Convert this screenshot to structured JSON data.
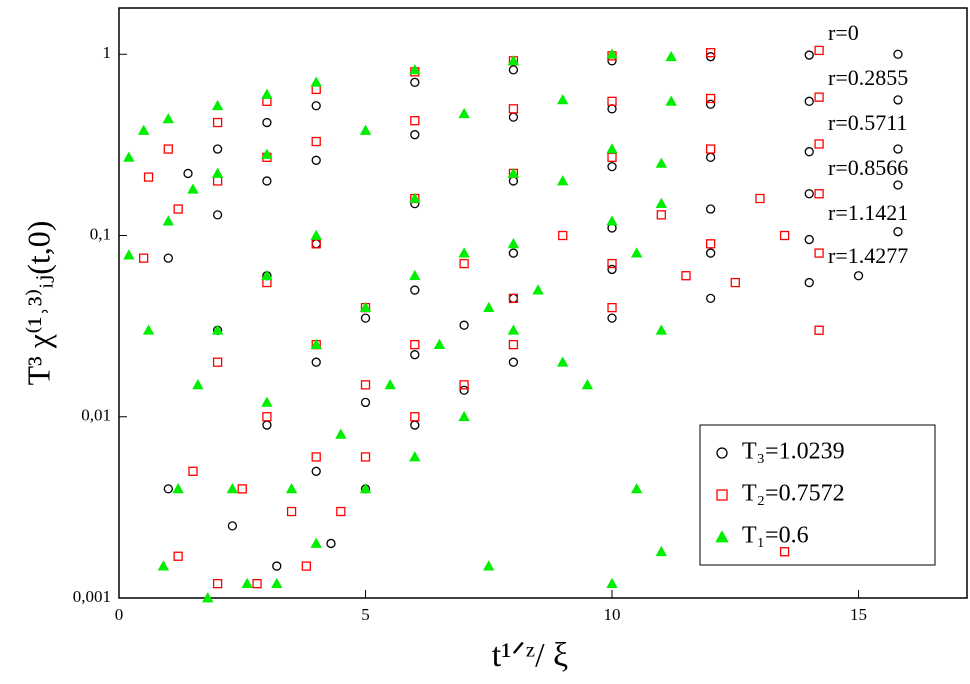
{
  "chart_data": {
    "type": "scatter",
    "xlabel": "t¹ᐟᶻ/ ξ",
    "ylabel": "T³ χ⁽¹˒³⁾ᵢⱼ(t,0)",
    "log_y": true,
    "xlim": [
      0,
      17.2
    ],
    "ylim": [
      0.001,
      1.8
    ],
    "xticks": [
      0,
      5,
      10,
      15
    ],
    "yticks": [
      {
        "value": 0.001,
        "label": "0,001"
      },
      {
        "value": 0.01,
        "label": "0,01"
      },
      {
        "value": 0.1,
        "label": "0,1"
      },
      1
    ],
    "legend": "lower right",
    "annotations": [
      "r=0",
      "r=0.2855",
      "r=0.5711",
      "r=0.8566",
      "r=1.1421",
      "r=1.4277"
    ],
    "series": [
      {
        "name": "T₃=1.0239",
        "color": "#000000",
        "marker": "circle",
        "x": [
          1.4,
          2,
          3,
          4,
          6,
          8,
          10,
          12,
          14,
          15.8,
          1.0,
          2,
          3,
          4,
          6,
          8,
          10,
          12,
          14,
          15.8,
          1.0,
          2,
          3,
          4,
          6,
          8,
          10,
          12,
          14,
          15.8,
          2.3,
          3,
          4,
          5,
          6,
          8,
          10,
          12,
          14,
          15.8,
          3.2,
          4,
          5,
          6,
          7,
          8,
          10,
          12,
          14,
          15.8,
          4.3,
          5,
          6,
          7,
          8,
          10,
          12,
          14,
          15
        ],
        "values": [
          0.22,
          0.3,
          0.42,
          0.52,
          0.7,
          0.82,
          0.92,
          0.97,
          0.99,
          1.0,
          0.075,
          0.13,
          0.2,
          0.26,
          0.36,
          0.45,
          0.5,
          0.53,
          0.55,
          0.56,
          0.004,
          0.03,
          0.06,
          0.09,
          0.15,
          0.2,
          0.24,
          0.27,
          0.29,
          0.3,
          0.0025,
          0.009,
          0.02,
          0.035,
          0.05,
          0.08,
          0.11,
          0.14,
          0.17,
          0.19,
          0.0015,
          0.005,
          0.012,
          0.022,
          0.032,
          0.045,
          0.065,
          0.08,
          0.095,
          0.105,
          0.002,
          0.004,
          0.009,
          0.014,
          0.02,
          0.035,
          0.045,
          0.055,
          0.06
        ]
      },
      {
        "name": "T₂=0.7572",
        "color": "#ff0000",
        "marker": "square",
        "x": [
          0.6,
          1,
          2,
          3,
          4,
          6,
          8,
          10,
          12,
          14.2,
          0.5,
          1.2,
          2,
          3,
          4,
          6,
          8,
          10,
          12,
          14.2,
          1.2,
          1.5,
          2,
          3,
          4,
          6,
          8,
          10,
          12,
          14.2,
          2.0,
          2.5,
          3,
          4,
          5,
          7,
          9,
          11,
          13,
          14.2,
          2.8,
          3.5,
          4,
          5,
          6,
          8,
          10,
          12,
          13.5,
          14.2,
          3.8,
          4.5,
          5,
          6,
          7,
          8,
          10,
          11.5,
          12.5,
          13.5,
          14.2
        ],
        "values": [
          0.21,
          0.3,
          0.42,
          0.55,
          0.64,
          0.8,
          0.92,
          0.98,
          1.02,
          1.05,
          0.075,
          0.14,
          0.2,
          0.27,
          0.33,
          0.43,
          0.5,
          0.55,
          0.57,
          0.58,
          0.0017,
          0.005,
          0.02,
          0.055,
          0.09,
          0.16,
          0.22,
          0.27,
          0.3,
          0.32,
          0.0012,
          0.004,
          0.01,
          0.025,
          0.04,
          0.07,
          0.1,
          0.13,
          0.16,
          0.17,
          0.0012,
          0.003,
          0.006,
          0.015,
          0.025,
          0.045,
          0.07,
          0.09,
          0.1,
          0.08,
          0.0015,
          0.003,
          0.006,
          0.01,
          0.015,
          0.025,
          0.04,
          0.06,
          0.055,
          0.0018,
          0.03
        ]
      },
      {
        "name": "T₁=0.6",
        "color": "#00ee00",
        "marker": "triangle",
        "x": [
          0.2,
          0.5,
          1,
          2,
          3,
          4,
          6,
          8,
          10,
          11.2,
          0.2,
          0.6,
          1,
          1.5,
          2,
          3,
          5,
          7,
          9,
          11.2,
          0.9,
          1.2,
          1.6,
          2,
          3,
          4,
          6,
          8,
          10,
          11,
          1.8,
          2.3,
          3,
          4,
          5,
          6,
          7,
          8,
          9,
          10,
          11,
          2.6,
          3.5,
          4.5,
          5.5,
          6.5,
          7.5,
          8.5,
          9.5,
          10.5,
          11,
          3.2,
          4,
          5,
          6,
          7,
          7.5,
          8,
          9,
          10,
          10.5,
          11
        ],
        "values": [
          0.27,
          0.38,
          0.44,
          0.52,
          0.6,
          0.7,
          0.82,
          0.92,
          1.0,
          0.97,
          0.078,
          0.03,
          0.12,
          0.18,
          0.22,
          0.28,
          0.38,
          0.47,
          0.56,
          0.55,
          0.0015,
          0.004,
          0.015,
          0.03,
          0.06,
          0.1,
          0.16,
          0.22,
          0.3,
          0.25,
          0.001,
          0.004,
          0.012,
          0.025,
          0.04,
          0.06,
          0.08,
          0.09,
          0.2,
          0.12,
          0.15,
          0.0012,
          0.004,
          0.008,
          0.015,
          0.025,
          0.04,
          0.05,
          0.015,
          0.08,
          0.03,
          0.0012,
          0.002,
          0.004,
          0.006,
          0.01,
          0.0015,
          0.03,
          0.02,
          0.0012,
          0.004,
          0.0018
        ]
      }
    ]
  }
}
